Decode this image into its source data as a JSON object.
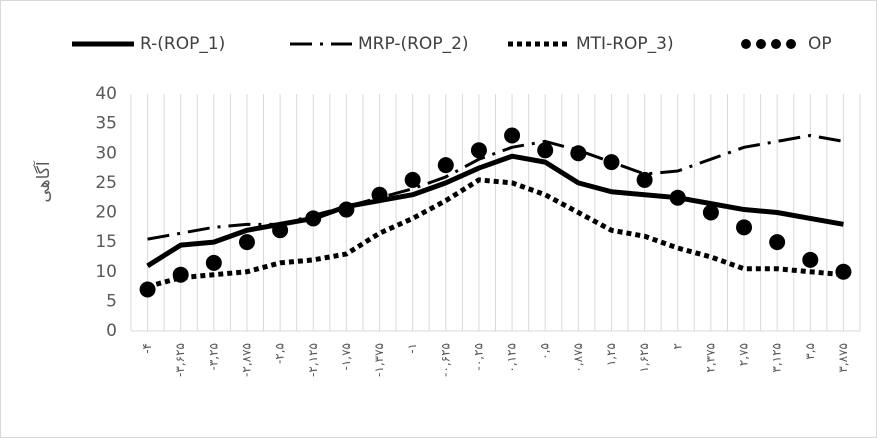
{
  "chart_data": {
    "type": "line",
    "y_label": "آگاهی",
    "categories": [
      "-۴",
      "-۳,۶۲۵",
      "-۳,۲۵",
      "-۲,۸۷۵",
      "-۲,۵",
      "-۲,۱۲۵",
      "-۱,۷۵",
      "-۱,۳۷۵",
      "-۱",
      "-۰,۶۲۵",
      "-۰,۲۵",
      "۰,۱۲۵",
      "۰,۵",
      "۰,۸۷۵",
      "۱,۲۵",
      "۱,۶۲۵",
      "۲",
      "۲,۳۷۵",
      "۲,۷۵",
      "۳,۱۲۵",
      "۳,۵",
      "۳,۸۷۵"
    ],
    "series": [
      {
        "name": "R-(ROP_1)",
        "color": "#000000",
        "style": "solid",
        "values": [
          11,
          14.5,
          15,
          17,
          18,
          19,
          21,
          22,
          23,
          25,
          27.5,
          29.5,
          28.5,
          25,
          23.5,
          23,
          22.5,
          21.5,
          20.5,
          20,
          19,
          18
        ]
      },
      {
        "name": "MRP-(ROP_2)",
        "color": "#000000",
        "style": "dashdot",
        "values": [
          15.5,
          16.5,
          17.5,
          18,
          18,
          19.5,
          21,
          22.5,
          24,
          26,
          29,
          31,
          32,
          30.5,
          28.5,
          26.5,
          27,
          29,
          31,
          32,
          33,
          32
        ]
      },
      {
        "name": "MTI-ROP_3)",
        "color": "#000000",
        "style": "dotted",
        "values": [
          7.5,
          9,
          9.5,
          10,
          11.5,
          12,
          13,
          16.5,
          19,
          22,
          25.5,
          25,
          23,
          20,
          17,
          16,
          14,
          12.5,
          10.5,
          10.5,
          10,
          9.5
        ]
      },
      {
        "name": "OP",
        "color": "#000000",
        "style": "markers",
        "values": [
          7,
          9.5,
          11.5,
          15,
          17,
          19,
          20.5,
          23,
          25.5,
          28,
          30.5,
          33,
          30.5,
          30,
          28.5,
          25.5,
          22.5,
          20,
          17.5,
          15,
          12,
          10
        ]
      }
    ],
    "ylim": [
      0,
      40
    ],
    "yticks": [
      0,
      5,
      10,
      15,
      20,
      25,
      30,
      35,
      40
    ],
    "grid": "x",
    "legend": "top"
  }
}
